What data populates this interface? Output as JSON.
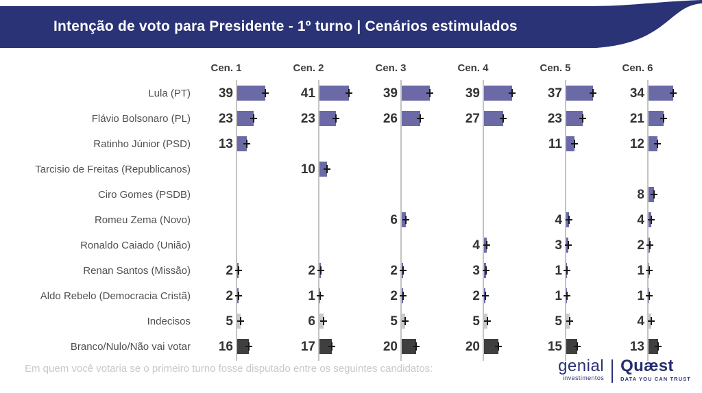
{
  "header": {
    "title": "Intenção de voto para Presidente - 1º turno | Cenários estimulados",
    "bg_color": "#2b3377"
  },
  "chart_data": {
    "type": "bar",
    "orientation": "horizontal",
    "title": "Intenção de voto para Presidente - 1º turno | Cenários estimulados",
    "xlabel": "",
    "ylabel": "",
    "grid": false,
    "legend": "none",
    "scenarios": [
      "Cen. 1",
      "Cen. 2",
      "Cen. 3",
      "Cen. 4",
      "Cen. 5",
      "Cen. 6"
    ],
    "categories": [
      "Lula (PT)",
      "Flávio Bolsonaro (PL)",
      "Ratinho Júnior (PSD)",
      "Tarcisio de Freitas (Republicanos)",
      "Ciro Gomes (PSDB)",
      "Romeu Zema (Novo)",
      "Ronaldo Caiado (União)",
      "Renan Santos (Missão)",
      "Aldo Rebelo (Democracia Cristã)",
      "Indecisos",
      "Branco/Nulo/Não vai votar"
    ],
    "category_types": [
      "candidate",
      "candidate",
      "candidate",
      "candidate",
      "candidate",
      "candidate",
      "candidate",
      "candidate",
      "candidate",
      "undecided",
      "blank"
    ],
    "series": [
      {
        "name": "Cen. 1",
        "values": [
          39,
          23,
          13,
          null,
          null,
          null,
          null,
          2,
          2,
          5,
          16
        ]
      },
      {
        "name": "Cen. 2",
        "values": [
          41,
          23,
          null,
          10,
          null,
          null,
          null,
          2,
          1,
          6,
          17
        ]
      },
      {
        "name": "Cen. 3",
        "values": [
          39,
          26,
          null,
          null,
          null,
          6,
          null,
          2,
          2,
          5,
          20
        ]
      },
      {
        "name": "Cen. 4",
        "values": [
          39,
          27,
          null,
          null,
          null,
          null,
          4,
          3,
          2,
          5,
          20
        ]
      },
      {
        "name": "Cen. 5",
        "values": [
          37,
          23,
          11,
          null,
          null,
          4,
          3,
          1,
          1,
          5,
          15
        ]
      },
      {
        "name": "Cen. 6",
        "values": [
          34,
          21,
          12,
          null,
          8,
          4,
          2,
          1,
          1,
          4,
          13
        ]
      }
    ],
    "bar_colors": {
      "candidate": "#6b6aa7",
      "undecided": "#c9c9c9",
      "blank": "#3f3f3f"
    },
    "axis_color": "#c3c3c3",
    "error_marker_color": "#171717"
  },
  "footer": {
    "question": "Em quem você votaria se o primeiro turno fosse disputado entre os seguintes candidatos:",
    "genial_logo": {
      "name": "genial",
      "sub": "investimentos"
    },
    "quaest_logo": {
      "name": "Quæst",
      "sub": "DATA YOU CAN TRUST"
    }
  }
}
